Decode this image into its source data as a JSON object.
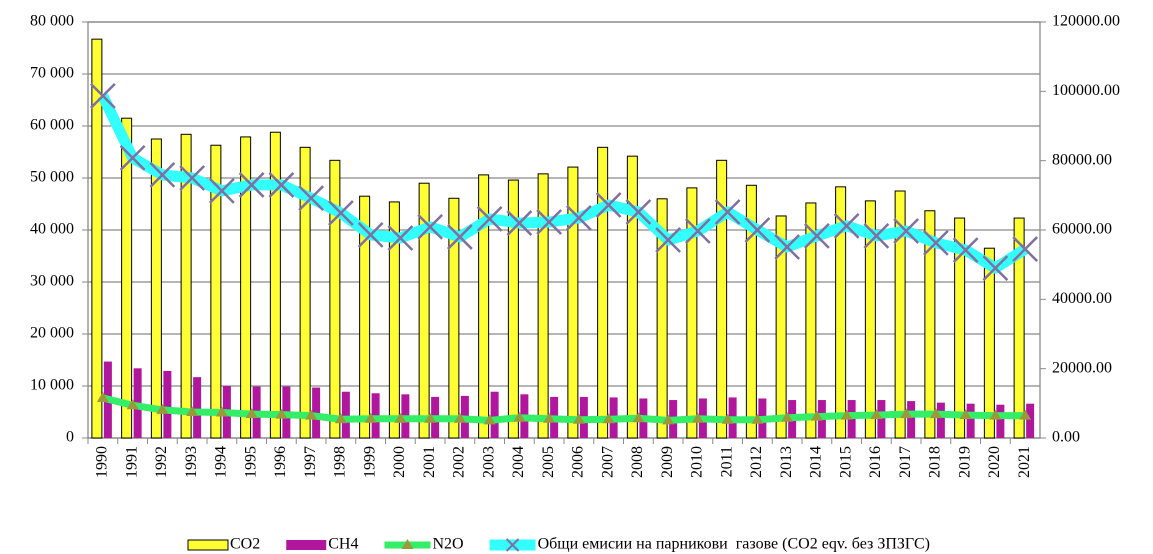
{
  "chart_data": {
    "type": "bar",
    "categories": [
      "1990",
      "1991",
      "1992",
      "1993",
      "1994",
      "1995",
      "1996",
      "1997",
      "1998",
      "1999",
      "2000",
      "2001",
      "2002",
      "2003",
      "2004",
      "2005",
      "2006",
      "2007",
      "2008",
      "2009",
      "2010",
      "2011",
      "2012",
      "2013",
      "2014",
      "2015",
      "2016",
      "2017",
      "2018",
      "2019",
      "2020",
      "2021"
    ],
    "series": [
      {
        "name": "CO2",
        "type": "bar",
        "color": "#ffff33",
        "values": [
          76700,
          61500,
          57500,
          58400,
          56300,
          57900,
          58800,
          55900,
          53400,
          46500,
          45400,
          49000,
          46100,
          50600,
          49600,
          50800,
          52100,
          55900,
          54200,
          46000,
          48100,
          53400,
          48600,
          42700,
          45200,
          48300,
          45600,
          47500,
          43700,
          42300,
          36500,
          42300
        ]
      },
      {
        "name": "CH4",
        "type": "bar",
        "color": "#b0179c",
        "values": [
          14700,
          13400,
          12900,
          11700,
          10000,
          9900,
          9900,
          9700,
          8900,
          8600,
          8400,
          7900,
          8100,
          8900,
          8400,
          7900,
          7900,
          7800,
          7600,
          7300,
          7600,
          7800,
          7600,
          7300,
          7300,
          7300,
          7300,
          7100,
          6800,
          6600,
          6400,
          6600
        ]
      },
      {
        "name": "N2O",
        "type": "line",
        "color": "#33ee66",
        "marker": "triangle",
        "marker_color": "#9a9a3a",
        "values": [
          7700,
          6300,
          5400,
          5000,
          4900,
          4600,
          4500,
          4300,
          3600,
          3700,
          3700,
          3700,
          3700,
          3400,
          3900,
          3700,
          3500,
          3600,
          3800,
          3400,
          3700,
          3500,
          3500,
          3900,
          4100,
          4300,
          4400,
          4600,
          4600,
          4400,
          4300,
          4300
        ]
      },
      {
        "name": "Общи емисии на парникови  газове (CO2 eqv. без ЗПЗГС)",
        "type": "line",
        "axis": "y2",
        "color": "#33ffff",
        "marker": "x",
        "marker_color": "#8070a0",
        "values": [
          98700,
          80800,
          75900,
          75000,
          71300,
          73000,
          73000,
          69200,
          64900,
          58600,
          57700,
          60900,
          58000,
          63200,
          62000,
          62300,
          63500,
          67200,
          65200,
          57100,
          59700,
          65200,
          60000,
          55100,
          58300,
          61200,
          58300,
          59700,
          56300,
          54200,
          49000,
          54500
        ]
      }
    ],
    "ylim": [
      0,
      80000
    ],
    "yticks": [
      0,
      {
        "value": 10000,
        "label": "10 000"
      },
      {
        "value": 20000,
        "label": "20 000"
      },
      {
        "value": 30000,
        "label": "30 000"
      },
      {
        "value": 40000,
        "label": "40 000"
      },
      {
        "value": 50000,
        "label": "50 000"
      },
      {
        "value": 60000,
        "label": "60 000"
      },
      {
        "value": 70000,
        "label": "70 000"
      },
      {
        "value": 80000,
        "label": "80 000"
      }
    ],
    "y2lim": [
      0,
      120000
    ],
    "y2ticks": [
      {
        "value": 0,
        "label": "0.00"
      },
      {
        "value": 20000,
        "label": "20000.00"
      },
      {
        "value": 40000,
        "label": "40000.00"
      },
      {
        "value": 60000,
        "label": "60000.00"
      },
      {
        "value": 80000,
        "label": "80000.00"
      },
      {
        "value": 100000,
        "label": "100000.00"
      },
      {
        "value": 120000,
        "label": "120000.00"
      }
    ],
    "grid": true,
    "legend": "bottom"
  }
}
